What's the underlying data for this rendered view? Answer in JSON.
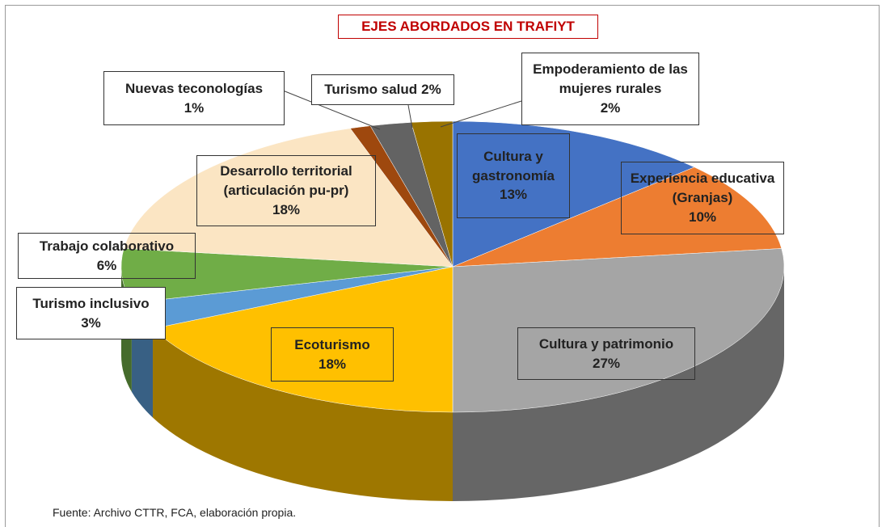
{
  "chart_data": {
    "type": "pie3d",
    "title": "EJES ABORDADOS EN TRAFIYT",
    "categories": [
      "Cultura y gastronomía",
      "Experiencia educativa (Granjas)",
      "Cultura y patrimonio",
      "Ecoturismo",
      "Turismo inclusivo",
      "Trabajo colaborativo",
      "Desarrollo territorial (articulación pu-pr)",
      "Nuevas teconologías",
      "Turismo salud",
      "Empoderamiento de las mujeres rurales"
    ],
    "values": [
      13,
      10,
      27,
      18,
      3,
      6,
      18,
      1,
      2,
      2
    ],
    "value_labels": [
      "13%",
      "10%",
      "27%",
      "18%",
      "3%",
      "6%",
      "18%",
      "1%",
      "2%",
      "2%"
    ],
    "colors": [
      "#4472c4",
      "#ed7d31",
      "#a5a5a5",
      "#ffc000",
      "#5b9bd5",
      "#70ad47",
      "#fbe5c3",
      "#9e480e",
      "#636363",
      "#997300"
    ],
    "source": "Fuente: Archivo CTTR, FCA, elaboración propia."
  }
}
